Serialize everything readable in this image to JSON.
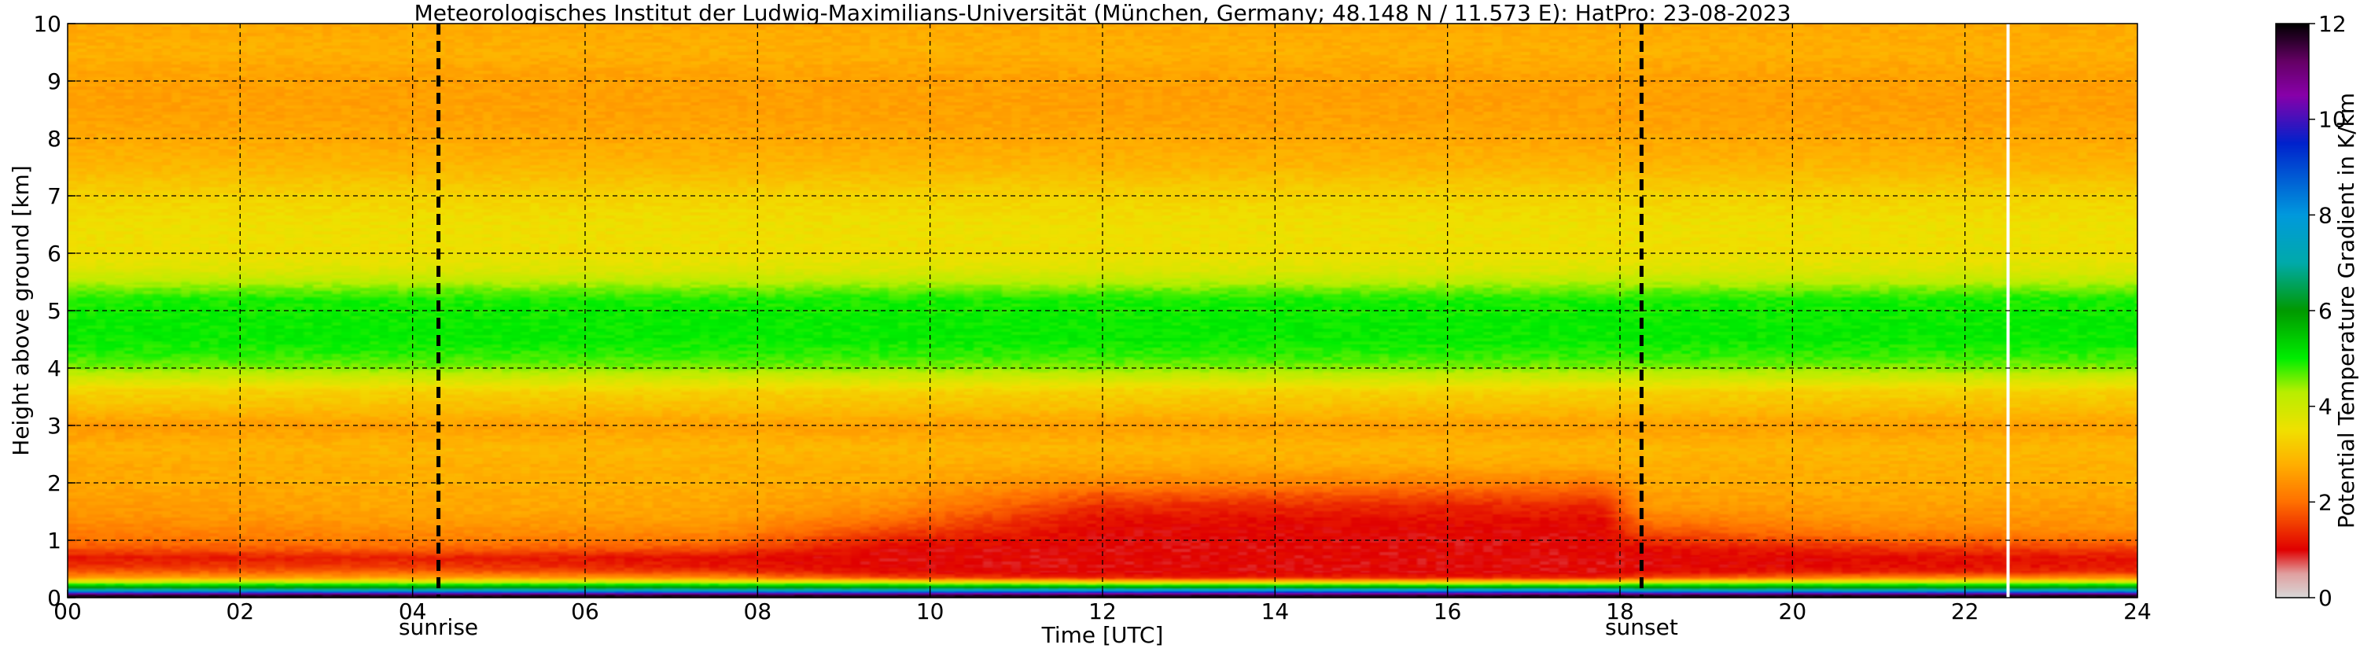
{
  "chart_data": {
    "type": "heatmap",
    "title": "Meteorologisches Institut der Ludwig-Maximilians-Universität (München, Germany; 48.148 N / 11.573 E):    HatPro: 23-08-2023",
    "xlabel": "Time [UTC]",
    "ylabel": "Height above ground [km]",
    "colorbar_label": "Potential Temperature Gradient in K/km",
    "xlim": [
      0,
      24
    ],
    "ylim": [
      0,
      10
    ],
    "clim": [
      0,
      12
    ],
    "x_ticks": [
      0,
      2,
      4,
      6,
      8,
      10,
      12,
      14,
      16,
      18,
      20,
      22,
      24
    ],
    "x_tick_labels": [
      "00",
      "02",
      "04",
      "06",
      "08",
      "10",
      "12",
      "14",
      "16",
      "18",
      "20",
      "22",
      "24"
    ],
    "y_ticks": [
      0,
      1,
      2,
      3,
      4,
      5,
      6,
      7,
      8,
      9,
      10
    ],
    "y_tick_labels": [
      "0",
      "1",
      "2",
      "3",
      "4",
      "5",
      "6",
      "7",
      "8",
      "9",
      "10"
    ],
    "colorbar_ticks": [
      0,
      2,
      4,
      6,
      8,
      10,
      12
    ],
    "colorbar_tick_labels": [
      "0",
      "2",
      "4",
      "6",
      "8",
      "10",
      "12"
    ],
    "grid": true,
    "colormap": [
      {
        "v": 0,
        "c": "#d8d8d8"
      },
      {
        "v": 0.5,
        "c": "#e0a0a0"
      },
      {
        "v": 1,
        "c": "#e00000"
      },
      {
        "v": 2,
        "c": "#ff7000"
      },
      {
        "v": 2.8,
        "c": "#ffb000"
      },
      {
        "v": 3.5,
        "c": "#f0e000"
      },
      {
        "v": 4.3,
        "c": "#b8ee00"
      },
      {
        "v": 5,
        "c": "#00ee00"
      },
      {
        "v": 6,
        "c": "#009900"
      },
      {
        "v": 7,
        "c": "#00aaaa"
      },
      {
        "v": 8,
        "c": "#0099dd"
      },
      {
        "v": 9.5,
        "c": "#0022cc"
      },
      {
        "v": 10.5,
        "c": "#8800aa"
      },
      {
        "v": 11.2,
        "c": "#660066"
      },
      {
        "v": 12,
        "c": "#000000"
      }
    ],
    "profile_heights_km": [
      0,
      0.05,
      0.08,
      0.12,
      0.18,
      0.25,
      0.3,
      0.35,
      0.45,
      0.55,
      0.7,
      0.85,
      1.0,
      1.2,
      1.4,
      1.6,
      1.8,
      2.0,
      2.3,
      2.6,
      3.0,
      3.3,
      3.6,
      4.0,
      4.2,
      4.5,
      4.8,
      5.2,
      5.4,
      5.7,
      6.0,
      6.5,
      7.0,
      7.5,
      8.0,
      8.5,
      9.0,
      9.5,
      10.0
    ],
    "profiles": [
      {
        "time": 0,
        "values": [
          12,
          11.5,
          9.5,
          7.5,
          6,
          4.5,
          3.5,
          2.5,
          1.8,
          1.4,
          1.2,
          1.7,
          2.0,
          2.2,
          2.4,
          2.5,
          2.6,
          2.7,
          2.7,
          2.8,
          2.5,
          3.0,
          3.3,
          4.5,
          4.8,
          5.0,
          5.0,
          4.9,
          4.5,
          3.8,
          3.5,
          3.5,
          3.3,
          2.9,
          2.7,
          2.6,
          2.6,
          2.8,
          2.7
        ]
      },
      {
        "time": 4,
        "values": [
          12,
          11.5,
          9.5,
          7.5,
          6,
          4.5,
          3.5,
          2.6,
          1.9,
          1.5,
          1.3,
          1.9,
          2.2,
          2.4,
          2.6,
          2.7,
          2.7,
          2.8,
          2.8,
          2.9,
          2.6,
          3.0,
          3.3,
          4.5,
          4.8,
          5.0,
          5.0,
          4.9,
          4.5,
          3.8,
          3.5,
          3.5,
          3.3,
          2.9,
          2.7,
          2.6,
          2.6,
          2.8,
          2.7
        ]
      },
      {
        "time": 7.5,
        "values": [
          12,
          11.5,
          9.5,
          7.5,
          6,
          4.5,
          3.3,
          2.3,
          1.5,
          1.2,
          1.1,
          1.7,
          2.1,
          2.4,
          2.6,
          2.7,
          2.7,
          2.8,
          2.8,
          2.9,
          2.6,
          3.0,
          3.3,
          4.5,
          4.8,
          5.0,
          5.0,
          4.9,
          4.5,
          3.8,
          3.5,
          3.5,
          3.3,
          2.9,
          2.7,
          2.6,
          2.6,
          2.8,
          2.7
        ]
      },
      {
        "time": 9.5,
        "values": [
          12,
          11.5,
          9.5,
          7.5,
          6,
          4.3,
          3.0,
          1.6,
          1.1,
          1.0,
          1.0,
          1.0,
          1.3,
          1.7,
          2.1,
          2.4,
          2.6,
          2.7,
          2.8,
          2.9,
          2.6,
          3.0,
          3.3,
          4.5,
          4.8,
          5.0,
          5.0,
          4.9,
          4.5,
          3.8,
          3.5,
          3.5,
          3.3,
          2.9,
          2.7,
          2.6,
          2.6,
          2.8,
          2.7
        ]
      },
      {
        "time": 12,
        "values": [
          12,
          11.5,
          9.8,
          8,
          6,
          4.0,
          2.5,
          1.3,
          1.0,
          1.0,
          1.0,
          1.0,
          1.0,
          1.05,
          1.15,
          1.4,
          1.8,
          2.3,
          2.7,
          2.9,
          2.6,
          3.0,
          3.3,
          4.5,
          4.8,
          5.0,
          5.0,
          4.9,
          4.5,
          3.8,
          3.5,
          3.5,
          3.3,
          2.9,
          2.7,
          2.6,
          2.6,
          2.8,
          2.7
        ]
      },
      {
        "time": 17.8,
        "values": [
          12,
          11.5,
          9.8,
          8,
          6,
          4.0,
          2.5,
          1.3,
          1.0,
          1.0,
          1.0,
          1.0,
          1.0,
          1.05,
          1.15,
          1.35,
          1.7,
          2.2,
          2.7,
          2.9,
          2.6,
          3.0,
          3.3,
          4.5,
          4.8,
          5.0,
          5.0,
          4.9,
          4.5,
          3.8,
          3.5,
          3.5,
          3.3,
          2.9,
          2.7,
          2.6,
          2.6,
          2.8,
          2.7
        ]
      },
      {
        "time": 18.3,
        "values": [
          12,
          11.5,
          9.5,
          7.5,
          6,
          4.3,
          3.0,
          1.6,
          1.1,
          1.0,
          1.0,
          1.1,
          1.4,
          1.8,
          2.2,
          2.5,
          2.6,
          2.7,
          2.8,
          2.9,
          2.6,
          3.0,
          3.3,
          4.5,
          4.8,
          5.0,
          5.0,
          4.9,
          4.5,
          3.8,
          3.5,
          3.5,
          3.3,
          2.9,
          2.7,
          2.6,
          2.6,
          2.8,
          2.7
        ]
      },
      {
        "time": 21,
        "values": [
          12,
          11.5,
          9.5,
          7.5,
          6,
          4.5,
          3.3,
          2.2,
          1.3,
          1.1,
          1.1,
          1.4,
          1.9,
          2.3,
          2.5,
          2.6,
          2.7,
          2.8,
          2.8,
          2.9,
          2.6,
          3.0,
          3.3,
          4.5,
          4.8,
          5.0,
          5.0,
          4.9,
          4.5,
          3.8,
          3.5,
          3.5,
          3.3,
          2.9,
          2.7,
          2.6,
          2.6,
          2.8,
          2.7
        ]
      },
      {
        "time": 24,
        "values": [
          12,
          11.5,
          9.5,
          7.5,
          6,
          4.5,
          3.3,
          2.3,
          1.4,
          1.2,
          1.2,
          1.6,
          2.0,
          2.4,
          2.5,
          2.6,
          2.7,
          2.8,
          2.8,
          2.9,
          2.6,
          3.0,
          3.3,
          4.5,
          4.8,
          5.0,
          5.0,
          4.9,
          4.5,
          3.8,
          3.5,
          3.5,
          3.3,
          2.9,
          2.7,
          2.6,
          2.6,
          2.8,
          2.7
        ]
      }
    ],
    "missing_data_time": 22.5,
    "annotations": [
      {
        "label": "sunrise",
        "time": 4.3
      },
      {
        "label": "sunset",
        "time": 18.25
      }
    ]
  }
}
